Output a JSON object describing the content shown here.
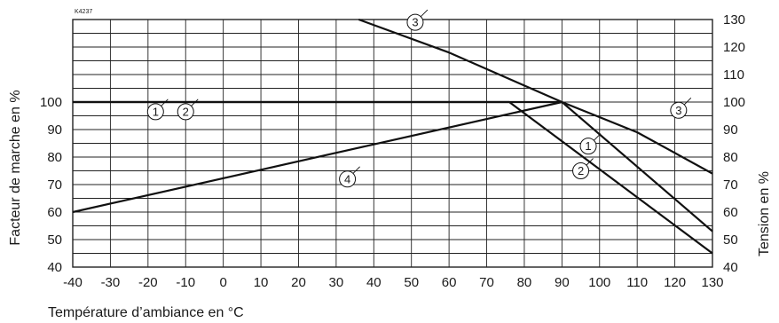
{
  "chart_data": {
    "type": "line",
    "reference_code": "K4237",
    "xlabel": "Température d’ambiance en °C",
    "ylabel_left": "Facteur de marche en %",
    "ylabel_right": "Tension en %",
    "xlim": [
      -40,
      130
    ],
    "ylim_left": [
      40,
      100
    ],
    "ylim_right": [
      40,
      130
    ],
    "x_ticks": [
      "-40",
      "-30",
      "-20",
      "-10",
      "0",
      "10",
      "20",
      "30",
      "40",
      "50",
      "60",
      "70",
      "80",
      "90",
      "100",
      "110",
      "120",
      "130"
    ],
    "y_ticks_left": [
      "40",
      "50",
      "60",
      "70",
      "80",
      "90",
      "100"
    ],
    "y_ticks_right": [
      "40",
      "50",
      "60",
      "70",
      "80",
      "90",
      "100",
      "110",
      "120",
      "130"
    ],
    "grid": true,
    "series": [
      {
        "name": "1",
        "axis": "left",
        "x": [
          -40,
          90,
          130
        ],
        "y": [
          100,
          100,
          53
        ]
      },
      {
        "name": "2",
        "axis": "left",
        "x": [
          -40,
          76,
          130
        ],
        "y": [
          100,
          100,
          45
        ]
      },
      {
        "name": "3",
        "axis": "right",
        "x": [
          36,
          60,
          90,
          110,
          130
        ],
        "y": [
          130,
          118,
          100,
          89,
          74
        ]
      },
      {
        "name": "4",
        "axis": "right",
        "x": [
          -40,
          90
        ],
        "y": [
          60,
          100
        ]
      }
    ],
    "markers": [
      {
        "label": "1",
        "x": -18,
        "y": 96.5,
        "axis": "left"
      },
      {
        "label": "2",
        "x": -10,
        "y": 96.5,
        "axis": "left"
      },
      {
        "label": "3",
        "x": 51,
        "y": 129,
        "axis": "right"
      },
      {
        "label": "3",
        "x": 121,
        "y": 97,
        "axis": "right"
      },
      {
        "label": "1",
        "x": 97,
        "y": 84,
        "axis": "left"
      },
      {
        "label": "2",
        "x": 95,
        "y": 75,
        "axis": "left"
      },
      {
        "label": "4",
        "x": 33,
        "y": 72,
        "axis": "right"
      }
    ]
  }
}
